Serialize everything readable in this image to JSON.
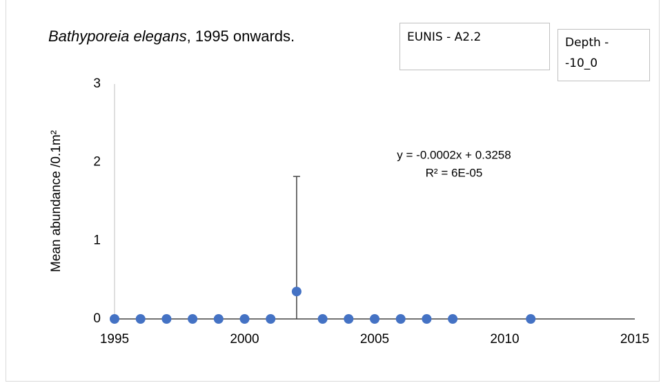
{
  "chart_data": {
    "type": "scatter",
    "title_species": "Bathyporeia elegans",
    "title_rest": ", 1995 onwards.",
    "eunis_label": "EUNIS - A2.2",
    "depth_label": "Depth - -10_0",
    "y_label": "Mean abundance /0.1m²",
    "annotations": [
      "y = -0.0002x + 0.3258",
      "R² = 6E-05"
    ],
    "color": "#4472c4",
    "x": [
      1995,
      1996,
      1997,
      1998,
      1999,
      2000,
      2001,
      2002,
      2003,
      2004,
      2005,
      2006,
      2007,
      2008,
      2011
    ],
    "values": [
      0,
      0,
      0,
      0,
      0,
      0,
      0,
      0.35,
      0,
      0,
      0,
      0,
      0,
      0,
      0
    ],
    "errors": [
      null,
      null,
      null,
      null,
      null,
      null,
      null,
      1.47,
      null,
      null,
      null,
      null,
      null,
      null,
      null
    ],
    "xlim": [
      1995,
      2015
    ],
    "xticks": [
      1995,
      2000,
      2005,
      2010,
      2015
    ],
    "ylim": [
      0,
      3
    ],
    "yticks": [
      0,
      1,
      2,
      3
    ]
  }
}
